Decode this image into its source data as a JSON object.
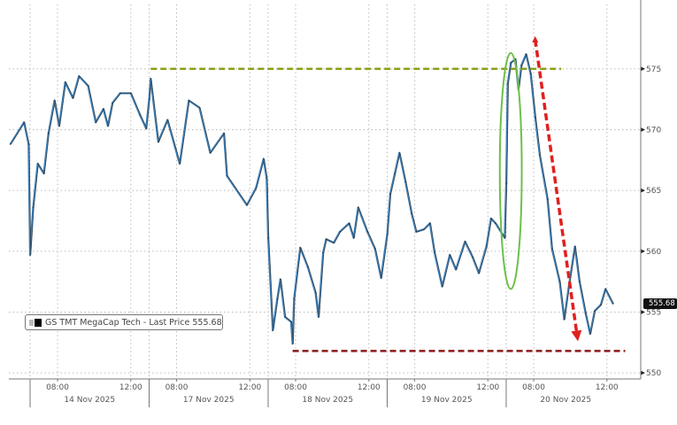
{
  "chart_data": {
    "type": "line",
    "title": "",
    "xlabel": "",
    "ylabel": "",
    "ylim": [
      549.5,
      580.3
    ],
    "grid": true,
    "legend": {
      "placement": "bottom-left",
      "label": "GS TMT MegaCap Tech - Last Price 555.68"
    },
    "last_price": "555.68",
    "y_ticks": [
      550,
      555,
      560,
      565,
      570,
      575
    ],
    "y_tick_labels": [
      "550",
      "555",
      "560",
      "565",
      "570",
      "575"
    ],
    "session": [
      "06:30",
      "13:00"
    ],
    "x_day_labels": [
      {
        "date": "2025-11-14",
        "label": "14 Nov 2025"
      },
      {
        "date": "2025-11-17",
        "label": "17 Nov 2025"
      },
      {
        "date": "2025-11-18",
        "label": "18 Nov 2025"
      },
      {
        "date": "2025-11-19",
        "label": "19 Nov 2025"
      },
      {
        "date": "2025-11-20",
        "label": "20 Nov 2025"
      }
    ],
    "x_hour_ticks": [
      "08:00",
      "12:00"
    ],
    "colors": {
      "line": "#3f7fb5",
      "line_dark": "#2b2b2b",
      "resistance": "#8aa11a",
      "support": "#8b1a1a",
      "arrow": "#e0201e",
      "ellipse": "#6cc04a",
      "grid": "#bbbbbb"
    },
    "series": [
      {
        "name": "GS TMT MegaCap Tech - Last Price",
        "points": [
          [
            "2025-11-13 11:55",
            568.8
          ],
          [
            "2025-11-13 12:40",
            570.6
          ],
          [
            "2025-11-13 12:55",
            568.8
          ],
          [
            "2025-11-14 06:30",
            559.7
          ],
          [
            "2025-11-14 06:40",
            563.6
          ],
          [
            "2025-11-14 06:55",
            567.2
          ],
          [
            "2025-11-14 07:15",
            566.4
          ],
          [
            "2025-11-14 07:30",
            569.7
          ],
          [
            "2025-11-14 07:50",
            572.4
          ],
          [
            "2025-11-14 08:05",
            570.3
          ],
          [
            "2025-11-14 08:25",
            573.9
          ],
          [
            "2025-11-14 08:50",
            572.6
          ],
          [
            "2025-11-14 09:10",
            574.4
          ],
          [
            "2025-11-14 09:40",
            573.6
          ],
          [
            "2025-11-14 10:05",
            570.6
          ],
          [
            "2025-11-14 10:30",
            571.7
          ],
          [
            "2025-11-14 10:45",
            570.3
          ],
          [
            "2025-11-14 11:00",
            572.2
          ],
          [
            "2025-11-14 11:25",
            573.0
          ],
          [
            "2025-11-14 12:00",
            573.0
          ],
          [
            "2025-11-14 12:30",
            571.2
          ],
          [
            "2025-11-14 12:50",
            570.1
          ],
          [
            "2025-11-14 13:00",
            572.5
          ],
          [
            "2025-11-17 06:35",
            574.2
          ],
          [
            "2025-11-17 07:00",
            569.0
          ],
          [
            "2025-11-17 07:30",
            570.8
          ],
          [
            "2025-11-17 08:10",
            567.2
          ],
          [
            "2025-11-17 08:40",
            572.4
          ],
          [
            "2025-11-17 09:15",
            571.8
          ],
          [
            "2025-11-17 09:50",
            568.1
          ],
          [
            "2025-11-17 10:35",
            569.7
          ],
          [
            "2025-11-17 10:45",
            566.2
          ],
          [
            "2025-11-17 11:50",
            563.8
          ],
          [
            "2025-11-17 12:20",
            565.2
          ],
          [
            "2025-11-17 12:45",
            567.6
          ],
          [
            "2025-11-17 12:55",
            566.0
          ],
          [
            "2025-11-18 06:30",
            561.1
          ],
          [
            "2025-11-18 06:45",
            553.5
          ],
          [
            "2025-11-18 07:00",
            556.1
          ],
          [
            "2025-11-18 07:10",
            557.7
          ],
          [
            "2025-11-18 07:25",
            554.6
          ],
          [
            "2025-11-18 07:45",
            554.2
          ],
          [
            "2025-11-18 07:50",
            552.4
          ],
          [
            "2025-11-18 07:55",
            556.1
          ],
          [
            "2025-11-18 08:15",
            560.3
          ],
          [
            "2025-11-18 08:40",
            558.7
          ],
          [
            "2025-11-18 09:05",
            556.6
          ],
          [
            "2025-11-18 09:15",
            554.6
          ],
          [
            "2025-11-18 09:30",
            559.9
          ],
          [
            "2025-11-18 09:40",
            561.0
          ],
          [
            "2025-11-18 10:05",
            560.7
          ],
          [
            "2025-11-18 10:25",
            561.6
          ],
          [
            "2025-11-18 10:55",
            562.3
          ],
          [
            "2025-11-18 11:10",
            561.1
          ],
          [
            "2025-11-18 11:25",
            563.6
          ],
          [
            "2025-11-18 11:55",
            561.6
          ],
          [
            "2025-11-18 12:20",
            560.2
          ],
          [
            "2025-11-18 12:40",
            557.8
          ],
          [
            "2025-11-19 06:30",
            561.4
          ],
          [
            "2025-11-19 06:40",
            564.7
          ],
          [
            "2025-11-19 06:55",
            566.4
          ],
          [
            "2025-11-19 07:10",
            568.1
          ],
          [
            "2025-11-19 07:30",
            565.7
          ],
          [
            "2025-11-19 07:50",
            563.1
          ],
          [
            "2025-11-19 08:05",
            561.6
          ],
          [
            "2025-11-19 08:30",
            561.8
          ],
          [
            "2025-11-19 08:50",
            562.3
          ],
          [
            "2025-11-19 09:05",
            559.9
          ],
          [
            "2025-11-19 09:30",
            557.1
          ],
          [
            "2025-11-19 09:55",
            559.7
          ],
          [
            "2025-11-19 10:15",
            558.5
          ],
          [
            "2025-11-19 10:45",
            560.8
          ],
          [
            "2025-11-19 11:10",
            559.5
          ],
          [
            "2025-11-19 11:30",
            558.2
          ],
          [
            "2025-11-19 11:55",
            560.4
          ],
          [
            "2025-11-19 12:10",
            562.7
          ],
          [
            "2025-11-19 12:25",
            562.3
          ],
          [
            "2025-11-19 12:55",
            561.1
          ],
          [
            "2025-11-20 06:30",
            565.6
          ],
          [
            "2025-11-20 06:35",
            573.8
          ],
          [
            "2025-11-20 06:45",
            575.5
          ],
          [
            "2025-11-20 07:00",
            575.8
          ],
          [
            "2025-11-20 07:10",
            573.3
          ],
          [
            "2025-11-20 07:20",
            575.3
          ],
          [
            "2025-11-20 07:35",
            576.2
          ],
          [
            "2025-11-20 07:50",
            574.6
          ],
          [
            "2025-11-20 08:05",
            571.0
          ],
          [
            "2025-11-20 08:20",
            567.9
          ],
          [
            "2025-11-20 08:45",
            564.3
          ],
          [
            "2025-11-20 09:00",
            560.2
          ],
          [
            "2025-11-20 09:25",
            557.5
          ],
          [
            "2025-11-20 09:40",
            554.4
          ],
          [
            "2025-11-20 09:55",
            557.1
          ],
          [
            "2025-11-20 10:15",
            560.4
          ],
          [
            "2025-11-20 10:30",
            557.5
          ],
          [
            "2025-11-20 10:50",
            554.9
          ],
          [
            "2025-11-20 11:05",
            553.2
          ],
          [
            "2025-11-20 11:20",
            555.1
          ],
          [
            "2025-11-20 11:40",
            555.6
          ],
          [
            "2025-11-20 11:55",
            556.9
          ],
          [
            "2025-11-20 12:20",
            555.68
          ]
        ]
      }
    ],
    "annotations": [
      {
        "kind": "hline-dashed",
        "color": "resistance",
        "y": 575.0,
        "from": "2025-11-17 06:35",
        "to": "2025-11-20 09:30"
      },
      {
        "kind": "hline-dashed",
        "color": "support",
        "y": 551.8,
        "from": "2025-11-18 07:50",
        "to": "2025-11-20 13:00"
      },
      {
        "kind": "arrow-dashed",
        "color": "arrow",
        "from": [
          "2025-11-20 08:05",
          577.4
        ],
        "to": [
          "2025-11-20 10:25",
          552.6
        ]
      },
      {
        "kind": "ellipse",
        "color": "ellipse",
        "center": [
          "2025-11-20 06:45",
          566.6
        ],
        "half_width_hours": 0.6,
        "half_height": 9.7
      }
    ]
  }
}
